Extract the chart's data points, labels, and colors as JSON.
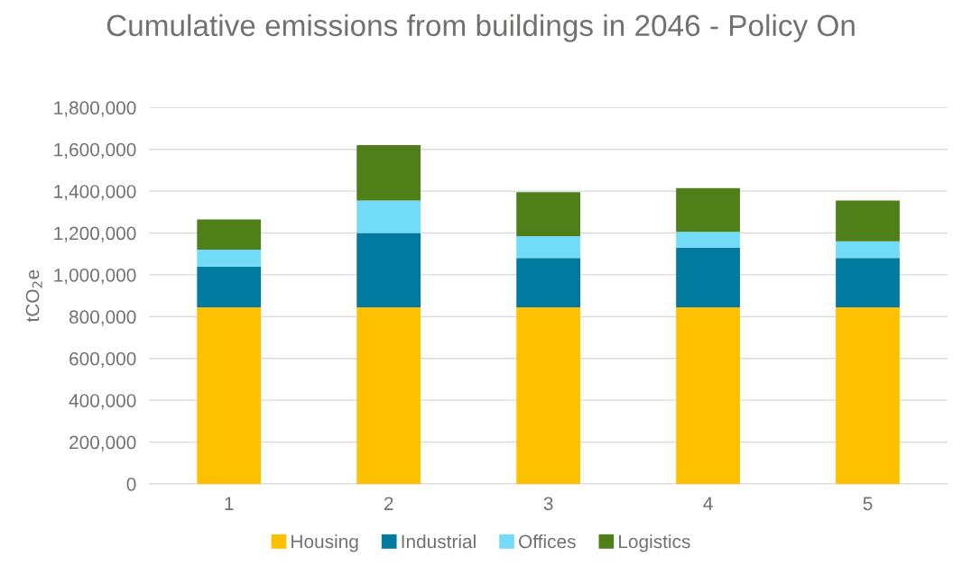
{
  "chart_data": {
    "type": "bar",
    "stacked": true,
    "title": "Cumulative emissions from buildings in 2046 - Policy On",
    "ylabel": "tCO$_{2}$e",
    "categories": [
      "1",
      "2",
      "3",
      "4",
      "5"
    ],
    "series": [
      {
        "name": "Housing",
        "color": "#ffc000",
        "values": [
          845000,
          845000,
          845000,
          845000,
          845000
        ]
      },
      {
        "name": "Industrial",
        "color": "#007a9e",
        "values": [
          195000,
          355000,
          235000,
          285000,
          235000
        ]
      },
      {
        "name": "Offices",
        "color": "#72dcf8",
        "values": [
          80000,
          155000,
          105000,
          75000,
          80000
        ]
      },
      {
        "name": "Logistics",
        "color": "#4e7f18",
        "values": [
          145000,
          265000,
          210000,
          210000,
          195000
        ]
      }
    ],
    "ylim": [
      0,
      1800000
    ],
    "yticks": [
      {
        "value": 0,
        "label": "0"
      },
      {
        "value": 200000,
        "label": "200,000"
      },
      {
        "value": 400000,
        "label": "400,000"
      },
      {
        "value": 600000,
        "label": "600,000"
      },
      {
        "value": 800000,
        "label": "800,000"
      },
      {
        "value": 1000000,
        "label": "1,000,000"
      },
      {
        "value": 1200000,
        "label": "1,200,000"
      },
      {
        "value": 1400000,
        "label": "1,400,000"
      },
      {
        "value": 1600000,
        "label": "1,600,000"
      },
      {
        "value": 1800000,
        "label": "1,800,000"
      }
    ],
    "grid": "y",
    "legend": "bottom"
  }
}
